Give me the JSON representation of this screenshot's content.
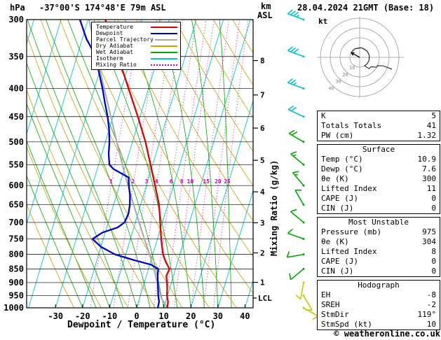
{
  "header": {
    "station": "-37°00'S 174°48'E 79m ASL",
    "datetime": "28.04.2024 21GMT (Base: 18)"
  },
  "axes": {
    "pressure_unit": "hPa",
    "altitude_unit_line1": "km",
    "altitude_unit_line2": "ASL",
    "x_label": "Dewpoint / Temperature (°C)",
    "right_label": "Mixing Ratio (g/kg)",
    "lcl_label": "LCL"
  },
  "legend": {
    "items": [
      {
        "label": "Temperature",
        "color": "#dd0000",
        "style": "solid"
      },
      {
        "label": "Dewpoint",
        "color": "#0000cc",
        "style": "solid"
      },
      {
        "label": "Parcel Trajectory",
        "color": "#a8a8a8",
        "style": "solid"
      },
      {
        "label": "Dry Adiabat",
        "color": "#c8a000",
        "style": "solid"
      },
      {
        "label": "Wet Adiabat",
        "color": "#00aa00",
        "style": "solid"
      },
      {
        "label": "Isotherm",
        "color": "#00c8c8",
        "style": "solid"
      },
      {
        "label": "Mixing Ratio",
        "color": "#cc00cc",
        "style": "dotted"
      }
    ]
  },
  "hodograph": {
    "unit_label": "kt",
    "ring_values": [
      10,
      20,
      30,
      40
    ],
    "storm_dir_deg": 119,
    "storm_spd_kt": 10
  },
  "panel": {
    "boxes": [
      {
        "title": "",
        "rows": [
          {
            "label": "K",
            "value": "5"
          },
          {
            "label": "Totals Totals",
            "value": "41"
          },
          {
            "label": "PW (cm)",
            "value": "1.32"
          }
        ]
      },
      {
        "title": "Surface",
        "rows": [
          {
            "label": "Temp (°C)",
            "value": "10.9"
          },
          {
            "label": "Dewp (°C)",
            "value": "7.6"
          },
          {
            "label": "θe (K)",
            "value": "300"
          },
          {
            "label": "Lifted Index",
            "value": "11"
          },
          {
            "label": "CAPE (J)",
            "value": "0"
          },
          {
            "label": "CIN (J)",
            "value": "0"
          }
        ]
      },
      {
        "title": "Most Unstable",
        "rows": [
          {
            "label": "Pressure (mb)",
            "value": "975"
          },
          {
            "label": "θe (K)",
            "value": "304"
          },
          {
            "label": "Lifted Index",
            "value": "8"
          },
          {
            "label": "CAPE (J)",
            "value": "0"
          },
          {
            "label": "CIN (J)",
            "value": "0"
          }
        ]
      },
      {
        "title": "Hodograph",
        "rows": [
          {
            "label": "EH",
            "value": "-8"
          },
          {
            "label": "SREH",
            "value": "-2"
          },
          {
            "label": "StmDir",
            "value": "119°"
          },
          {
            "label": "StmSpd (kt)",
            "value": "10"
          }
        ]
      }
    ]
  },
  "footer": {
    "copyright": "© weatheronline.co.uk"
  },
  "chart_data": {
    "type": "line",
    "title": "Skew-T log-P sounding",
    "x_axis": {
      "label": "Dewpoint / Temperature (°C)",
      "ticks": [
        -30,
        -20,
        -10,
        0,
        10,
        20,
        30,
        40
      ],
      "unit": "°C"
    },
    "y_axis": {
      "label": "hPa",
      "scale": "log",
      "ticks": [
        300,
        350,
        400,
        450,
        500,
        550,
        600,
        650,
        700,
        750,
        800,
        850,
        900,
        950,
        1000
      ]
    },
    "altitude_axis": {
      "label": "km ASL",
      "ticks": [
        {
          "km": 8,
          "p": 356
        },
        {
          "km": 7,
          "p": 411
        },
        {
          "km": 6,
          "p": 472
        },
        {
          "km": 5,
          "p": 540
        },
        {
          "km": 4,
          "p": 616
        },
        {
          "km": 3,
          "p": 701
        },
        {
          "km": 2,
          "p": 795
        },
        {
          "km": 1,
          "p": 899
        }
      ],
      "lcl_pressure": 960
    },
    "mixing_ratio_g_kg": [
      1,
      2,
      3,
      4,
      6,
      8,
      10,
      15,
      20,
      25
    ],
    "series": [
      {
        "name": "Temperature",
        "color": "#dd0000",
        "width": 2.3,
        "points": [
          [
            1000,
            11.3
          ],
          [
            975,
            10.9
          ],
          [
            950,
            9.8
          ],
          [
            925,
            9.2
          ],
          [
            900,
            8.4
          ],
          [
            875,
            7.4
          ],
          [
            850,
            7.8
          ],
          [
            825,
            5.6
          ],
          [
            800,
            3.8
          ],
          [
            775,
            2.6
          ],
          [
            750,
            1.4
          ],
          [
            700,
            -0.8
          ],
          [
            650,
            -3.2
          ],
          [
            600,
            -6.8
          ],
          [
            550,
            -10.8
          ],
          [
            500,
            -15.2
          ],
          [
            450,
            -20.8
          ],
          [
            400,
            -27.4
          ],
          [
            350,
            -34.8
          ],
          [
            300,
            -43.6
          ]
        ]
      },
      {
        "name": "Dewpoint",
        "color": "#0000cc",
        "width": 2.3,
        "points": [
          [
            1000,
            7.8
          ],
          [
            975,
            7.6
          ],
          [
            950,
            6.6
          ],
          [
            925,
            5.8
          ],
          [
            900,
            5.0
          ],
          [
            875,
            4.2
          ],
          [
            850,
            3.6
          ],
          [
            835,
            0.5
          ],
          [
            820,
            -6.0
          ],
          [
            800,
            -14.0
          ],
          [
            775,
            -20.0
          ],
          [
            750,
            -24.0
          ],
          [
            730,
            -21.0
          ],
          [
            715,
            -16.0
          ],
          [
            700,
            -14.0
          ],
          [
            675,
            -13.5
          ],
          [
            650,
            -14.0
          ],
          [
            625,
            -15.0
          ],
          [
            600,
            -16.5
          ],
          [
            580,
            -17.5
          ],
          [
            560,
            -24.0
          ],
          [
            550,
            -26.0
          ],
          [
            525,
            -27.5
          ],
          [
            500,
            -28.5
          ],
          [
            475,
            -30.0
          ],
          [
            450,
            -32.0
          ],
          [
            425,
            -34.5
          ],
          [
            400,
            -37.0
          ],
          [
            375,
            -40.0
          ],
          [
            350,
            -43.0
          ],
          [
            325,
            -48.5
          ],
          [
            300,
            -53.0
          ]
        ]
      },
      {
        "name": "Parcel Trajectory",
        "color": "#a8a8a8",
        "width": 2.0,
        "points": [
          [
            1000,
            11.3
          ],
          [
            960,
            8.0
          ],
          [
            925,
            6.2
          ],
          [
            900,
            4.8
          ],
          [
            850,
            2.0
          ],
          [
            800,
            -1.2
          ],
          [
            750,
            -4.8
          ],
          [
            700,
            -8.6
          ],
          [
            650,
            -12.6
          ],
          [
            600,
            -16.8
          ],
          [
            550,
            -21.2
          ],
          [
            500,
            -25.8
          ],
          [
            450,
            -30.8
          ],
          [
            400,
            -36.4
          ],
          [
            350,
            -42.6
          ],
          [
            300,
            -49.6
          ]
        ]
      }
    ],
    "wind_barbs": [
      {
        "p": 300,
        "dir": 290,
        "kt": 35,
        "color": "#00c8c8"
      },
      {
        "p": 350,
        "dir": 290,
        "kt": 30,
        "color": "#00c8c8"
      },
      {
        "p": 400,
        "dir": 290,
        "kt": 25,
        "color": "#00c8c8"
      },
      {
        "p": 450,
        "dir": 295,
        "kt": 20,
        "color": "#00c8c8"
      },
      {
        "p": 500,
        "dir": 300,
        "kt": 20,
        "color": "#00aa00"
      },
      {
        "p": 550,
        "dir": 310,
        "kt": 15,
        "color": "#00aa00"
      },
      {
        "p": 600,
        "dir": 320,
        "kt": 15,
        "color": "#00aa00"
      },
      {
        "p": 650,
        "dir": 330,
        "kt": 10,
        "color": "#00aa00"
      },
      {
        "p": 700,
        "dir": 310,
        "kt": 10,
        "color": "#00aa00"
      },
      {
        "p": 750,
        "dir": 290,
        "kt": 10,
        "color": "#00aa00"
      },
      {
        "p": 800,
        "dir": 260,
        "kt": 10,
        "color": "#00aa00"
      },
      {
        "p": 850,
        "dir": 230,
        "kt": 10,
        "color": "#00aa00"
      },
      {
        "p": 900,
        "dir": 190,
        "kt": 10,
        "color": "#c8c800"
      },
      {
        "p": 950,
        "dir": 150,
        "kt": 10,
        "color": "#c8c800"
      },
      {
        "p": 1000,
        "dir": 120,
        "kt": 10,
        "color": "#c8c800"
      }
    ]
  }
}
